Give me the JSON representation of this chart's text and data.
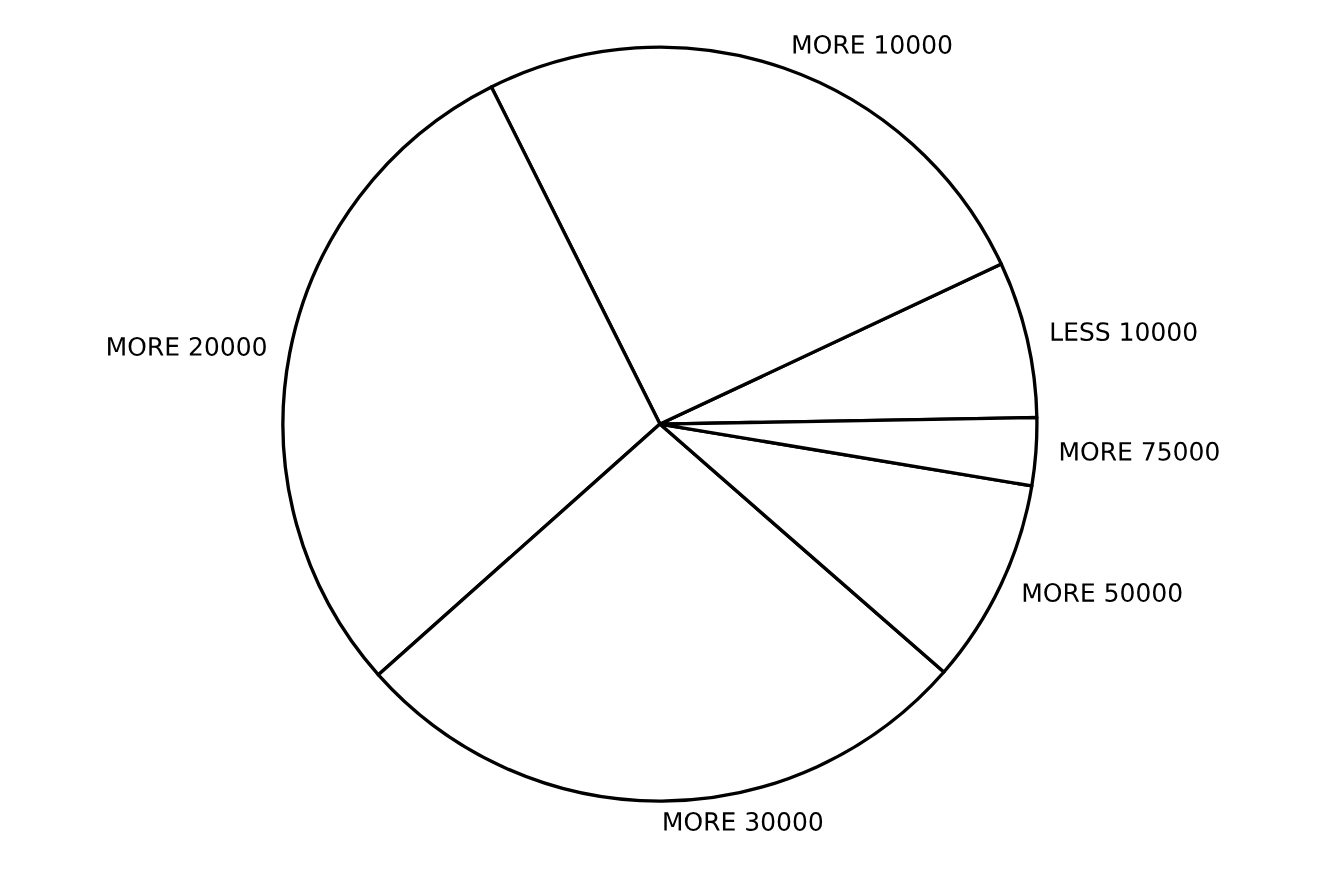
{
  "chart_data": {
    "type": "pie",
    "categories": [
      "LESS 10000",
      "MORE 10000",
      "MORE 20000",
      "MORE 30000",
      "MORE 50000",
      "MORE 75000"
    ],
    "values": [
      6.7,
      25.4,
      29.2,
      27.0,
      8.8,
      2.9
    ],
    "colors": [
      "#ffffff",
      "#ffffff",
      "#ffffff",
      "#ffffff",
      "#ffffff",
      "#ffffff"
    ]
  }
}
